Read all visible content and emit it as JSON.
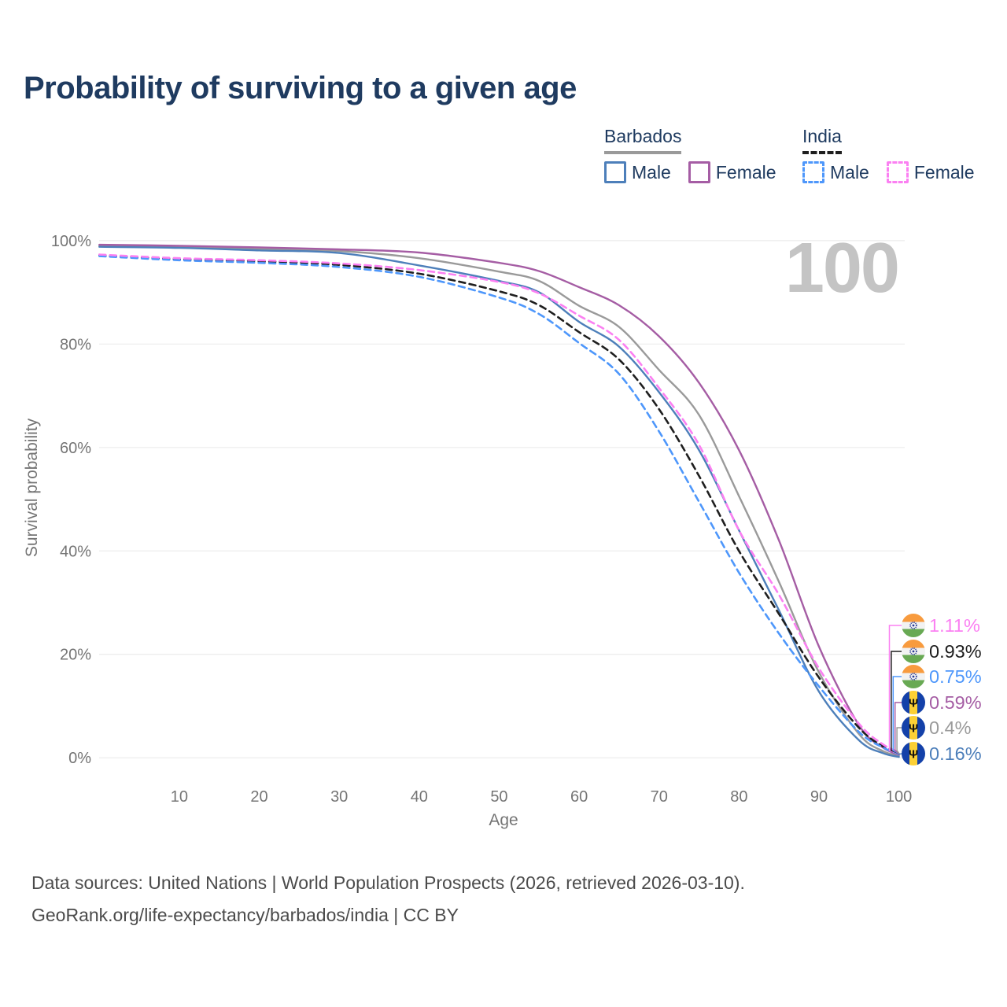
{
  "title": "Probability of surviving to a given age",
  "watermark": "100",
  "legend": {
    "groups": [
      {
        "label": "Barbados",
        "line_style": "solid",
        "bar_color": "#9a9a9a",
        "items": [
          {
            "label": "Male",
            "color": "#4d7fba"
          },
          {
            "label": "Female",
            "color": "#a55da4"
          }
        ]
      },
      {
        "label": "India",
        "line_style": "dashed",
        "bar_color": "#1f1f1f",
        "items": [
          {
            "label": "Male",
            "color": "#4e97fb"
          },
          {
            "label": "Female",
            "color": "#fb80f2"
          }
        ]
      }
    ]
  },
  "chart_data": {
    "type": "line",
    "title": "Probability of surviving to a given age",
    "xlabel": "Age",
    "ylabel": "Survival probability",
    "xlim": [
      0,
      100
    ],
    "ylim": [
      0,
      100
    ],
    "grid": "horizontal",
    "x_ticks": {
      "values": [
        10,
        20,
        30,
        40,
        50,
        60,
        70,
        80,
        90,
        100
      ],
      "labels": [
        "10",
        "20",
        "30",
        "40",
        "50",
        "60",
        "70",
        "80",
        "90",
        "100"
      ]
    },
    "y_ticks": {
      "values": [
        100,
        80,
        60,
        40,
        20,
        0
      ],
      "labels": [
        "100%",
        "80%",
        "60%",
        "40%",
        "20%",
        "0%"
      ]
    },
    "ages": [
      0,
      10,
      20,
      30,
      40,
      50,
      55,
      60,
      65,
      70,
      75,
      80,
      85,
      90,
      95,
      98,
      100
    ],
    "series": [
      {
        "name": "Barbados mean",
        "country": "Barbados",
        "sex": "all",
        "color": "#9a9a9a",
        "dash": false,
        "values": [
          99.0,
          98.8,
          98.4,
          98.0,
          96.6,
          94.0,
          92.2,
          87.4,
          83.3,
          75.0,
          66.3,
          50.6,
          34.0,
          16.5,
          4.6,
          1.3,
          0.4
        ]
      },
      {
        "name": "Barbados Female",
        "country": "Barbados",
        "sex": "female",
        "color": "#a55da4",
        "dash": false,
        "values": [
          99.2,
          99.0,
          98.7,
          98.3,
          97.7,
          95.7,
          94.1,
          91.0,
          87.5,
          81.5,
          72.5,
          59.5,
          42.0,
          21.5,
          6.3,
          2.0,
          0.59
        ]
      },
      {
        "name": "Barbados Male",
        "country": "Barbados",
        "sex": "male",
        "color": "#4d7fba",
        "dash": false,
        "values": [
          98.8,
          98.6,
          98.1,
          97.6,
          95.2,
          92.2,
          90.0,
          84.3,
          79.5,
          70.7,
          59.5,
          44.0,
          28.5,
          12.8,
          3.4,
          0.9,
          0.16
        ]
      },
      {
        "name": "India mean",
        "country": "India",
        "sex": "all",
        "color": "#1f1f1f",
        "dash": true,
        "values": [
          97.15,
          96.4,
          96.0,
          95.3,
          93.6,
          90.2,
          87.5,
          82.3,
          77.0,
          67.4,
          54.5,
          40.0,
          27.8,
          15.5,
          5.8,
          2.2,
          0.93
        ]
      },
      {
        "name": "India Male",
        "country": "India",
        "sex": "male",
        "color": "#4e97fb",
        "dash": true,
        "values": [
          97.0,
          96.2,
          95.7,
          94.9,
          93.0,
          89.0,
          85.8,
          80.2,
          74.2,
          63.1,
          49.5,
          35.8,
          24.0,
          13.8,
          5.0,
          2.0,
          0.75
        ]
      },
      {
        "name": "India Female",
        "country": "India",
        "sex": "female",
        "color": "#fb80f2",
        "dash": true,
        "values": [
          97.3,
          96.6,
          96.2,
          95.6,
          94.3,
          92.0,
          89.8,
          85.5,
          80.8,
          71.5,
          60.5,
          44.0,
          31.5,
          17.3,
          6.6,
          2.6,
          1.11
        ]
      }
    ],
    "end_labels": [
      {
        "text": "1.11%",
        "flag": "india",
        "series": "India Female",
        "color": "#fb80f2"
      },
      {
        "text": "0.93%",
        "flag": "india",
        "series": "India mean",
        "color": "#1f1f1f"
      },
      {
        "text": "0.75%",
        "flag": "india",
        "series": "India Male",
        "color": "#4e97fb"
      },
      {
        "text": "0.59%",
        "flag": "barbados",
        "series": "Barbados Female",
        "color": "#a55da4"
      },
      {
        "text": "0.4%",
        "flag": "barbados",
        "series": "Barbados mean",
        "color": "#9a9a9a"
      },
      {
        "text": "0.16%",
        "flag": "barbados",
        "series": "Barbados Male",
        "color": "#4d7fba"
      }
    ],
    "hovered_age_indicator": "100"
  },
  "footer": {
    "line1": "Data sources: United Nations | World Population Prospects (2026, retrieved 2026-03-10).",
    "line2": "GeoRank.org/life-expectancy/barbados/india | CC BY"
  }
}
